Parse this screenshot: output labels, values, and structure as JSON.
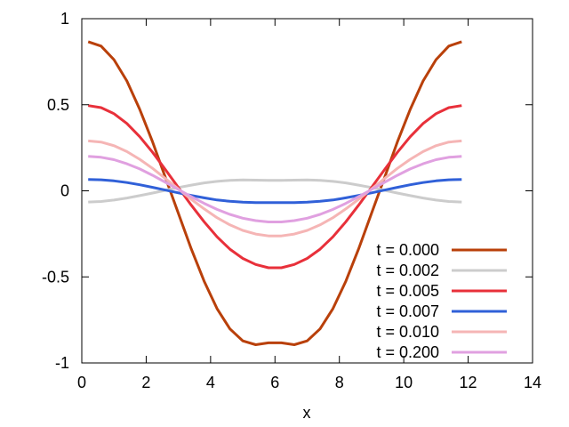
{
  "chart_data": {
    "type": "line",
    "title": "",
    "xlabel": "x",
    "ylabel": "",
    "xlim": [
      0,
      14
    ],
    "ylim": [
      -1,
      1
    ],
    "xticks": [
      0,
      2,
      4,
      6,
      8,
      10,
      12,
      14
    ],
    "xtick_labels": [
      "0",
      "2",
      "4",
      "6",
      "8",
      "10",
      "12",
      "14"
    ],
    "yticks": [
      -1,
      -0.5,
      0,
      0.5,
      1
    ],
    "ytick_labels": [
      "-1",
      "-0.5",
      "0",
      "0.5",
      "1"
    ],
    "grid": false,
    "legend_position": "bottom-right",
    "x": [
      0.2,
      0.6,
      1.0,
      1.4,
      1.8,
      2.2,
      2.6,
      3.0,
      3.4,
      3.8,
      4.2,
      4.6,
      5.0,
      5.4,
      5.8,
      6.2,
      6.6,
      7.0,
      7.4,
      7.8,
      8.2,
      8.6,
      9.0,
      9.4,
      9.8,
      10.2,
      10.6,
      11.0,
      11.4,
      11.8
    ],
    "series": [
      {
        "name": "t = 0.000",
        "color": "#b9400a",
        "values": [
          0.866,
          0.841,
          0.762,
          0.638,
          0.473,
          0.283,
          0.075,
          -0.131,
          -0.337,
          -0.525,
          -0.684,
          -0.802,
          -0.872,
          -0.894,
          -0.883,
          -0.883,
          -0.894,
          -0.872,
          -0.802,
          -0.684,
          -0.525,
          -0.337,
          -0.131,
          0.075,
          0.283,
          0.473,
          0.638,
          0.762,
          0.841,
          0.866
        ]
      },
      {
        "name": "t = 0.002",
        "color": "#cccccc",
        "values": [
          -0.065,
          -0.062,
          -0.054,
          -0.042,
          -0.028,
          -0.013,
          0.003,
          0.019,
          0.033,
          0.046,
          0.055,
          0.061,
          0.063,
          0.062,
          0.061,
          0.061,
          0.062,
          0.063,
          0.061,
          0.055,
          0.046,
          0.033,
          0.019,
          0.003,
          -0.013,
          -0.028,
          -0.042,
          -0.054,
          -0.062,
          -0.065
        ]
      },
      {
        "name": "t = 0.005",
        "color": "#e8303a",
        "values": [
          0.495,
          0.483,
          0.448,
          0.391,
          0.314,
          0.223,
          0.122,
          0.019,
          -0.083,
          -0.18,
          -0.267,
          -0.339,
          -0.393,
          -0.428,
          -0.447,
          -0.447,
          -0.428,
          -0.393,
          -0.339,
          -0.267,
          -0.18,
          -0.083,
          0.019,
          0.122,
          0.223,
          0.314,
          0.391,
          0.448,
          0.483,
          0.495
        ]
      },
      {
        "name": "t = 0.007",
        "color": "#3060d8",
        "values": [
          0.066,
          0.064,
          0.058,
          0.048,
          0.035,
          0.02,
          0.004,
          -0.012,
          -0.027,
          -0.041,
          -0.053,
          -0.061,
          -0.066,
          -0.068,
          -0.068,
          -0.068,
          -0.068,
          -0.066,
          -0.061,
          -0.053,
          -0.041,
          -0.027,
          -0.012,
          0.004,
          0.02,
          0.035,
          0.048,
          0.058,
          0.064,
          0.066
        ]
      },
      {
        "name": "t = 0.010",
        "color": "#f5b5b5",
        "values": [
          0.29,
          0.283,
          0.262,
          0.228,
          0.183,
          0.13,
          0.071,
          0.011,
          -0.049,
          -0.105,
          -0.156,
          -0.198,
          -0.23,
          -0.251,
          -0.262,
          -0.262,
          -0.251,
          -0.23,
          -0.198,
          -0.156,
          -0.105,
          -0.049,
          0.011,
          0.071,
          0.13,
          0.183,
          0.228,
          0.262,
          0.283,
          0.29
        ]
      },
      {
        "name": "t = 0.200",
        "color": "#e0a0e0",
        "values": [
          0.2,
          0.195,
          0.181,
          0.157,
          0.127,
          0.09,
          0.049,
          0.008,
          -0.034,
          -0.073,
          -0.108,
          -0.137,
          -0.159,
          -0.173,
          -0.181,
          -0.181,
          -0.173,
          -0.159,
          -0.137,
          -0.108,
          -0.073,
          -0.034,
          0.008,
          0.049,
          0.09,
          0.127,
          0.157,
          0.181,
          0.195,
          0.2
        ]
      }
    ]
  }
}
